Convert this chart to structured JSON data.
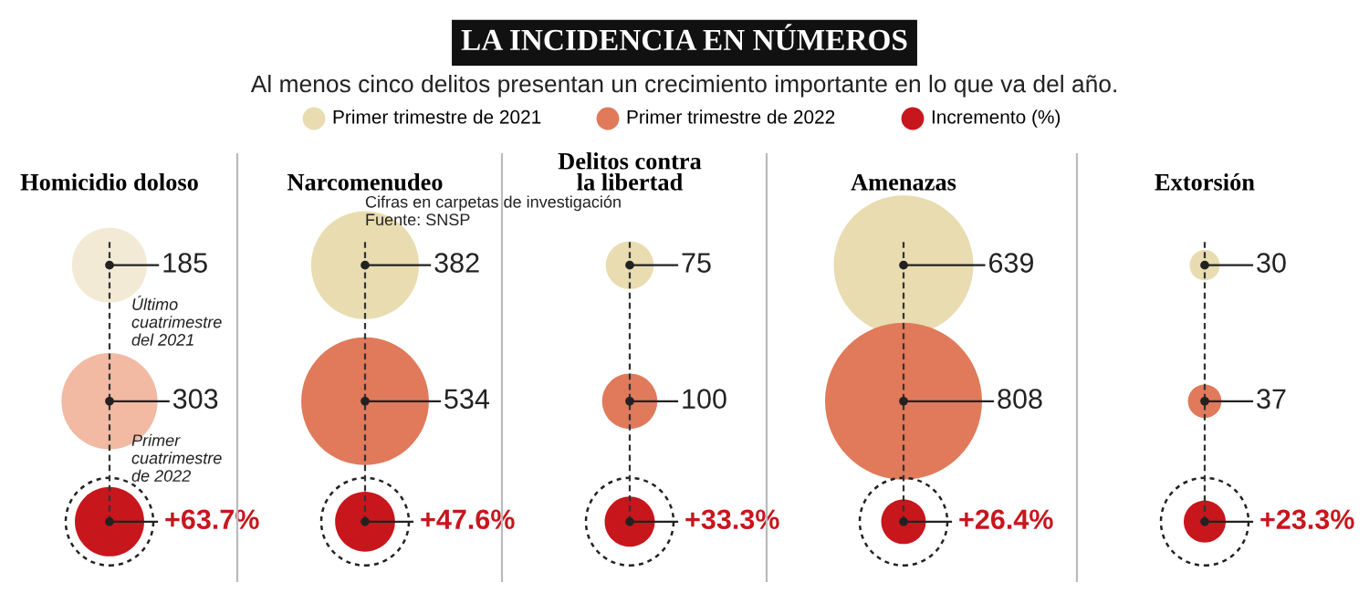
{
  "chart_data": [
    {
      "type": "other",
      "title": "LA INCIDENCIA EN NÚMEROS",
      "subtitle": "Al menos cinco delitos presentan un crecimiento importante en lo que va del año.",
      "categories": [
        "Primer trimestre de 2021",
        "Primer trimestre de 2022",
        "Incremento (%)"
      ],
      "colors": [
        "#e8dcb0",
        "#e07a5a",
        "#c8161d"
      ]
    },
    {
      "type": "other",
      "title": "Homicidio doloso",
      "values": [
        185,
        303,
        63.7
      ],
      "value_labels": [
        "185",
        "303",
        "+63.7%"
      ],
      "colors": [
        "#f3ead6",
        "#f2b9a3",
        "#c8161d"
      ],
      "annotations": [
        "Último\ncuatrimestre\ndel 2021",
        "Primer\ncuatrimestre\nde 2022"
      ]
    },
    {
      "type": "other",
      "title": "Narcomenudeo",
      "values": [
        382,
        534,
        47.6
      ],
      "value_labels": [
        "382",
        "534",
        "+47.6%"
      ],
      "colors": [
        "#e8dcb0",
        "#e07a5a",
        "#c8161d"
      ],
      "annotations": [
        "Cifras en carpetas de investigación\nFuente: SNSP"
      ]
    },
    {
      "type": "other",
      "title": "Delitos contra\nla libertad",
      "values": [
        75,
        100,
        33.3
      ],
      "value_labels": [
        "75",
        "100",
        "+33.3%"
      ],
      "colors": [
        "#e8dcb0",
        "#e07a5a",
        "#c8161d"
      ]
    },
    {
      "type": "other",
      "title": "Amenazas",
      "values": [
        639,
        808,
        26.4
      ],
      "value_labels": [
        "639",
        "808",
        "+26.4%"
      ],
      "colors": [
        "#e8dcb0",
        "#e07a5a",
        "#c8161d"
      ]
    },
    {
      "type": "other",
      "title": "Extorsión",
      "values": [
        30,
        37,
        23.3
      ],
      "value_labels": [
        "30",
        "37",
        "+23.3%"
      ],
      "colors": [
        "#e8dcb0",
        "#e07a5a",
        "#c8161d"
      ]
    }
  ]
}
